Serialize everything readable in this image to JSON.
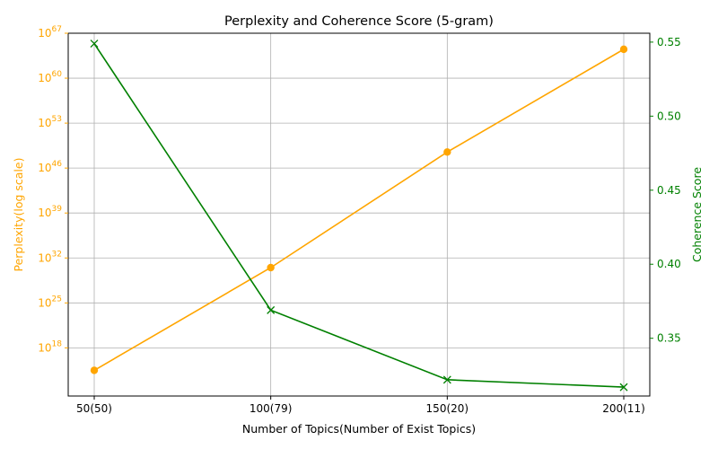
{
  "chart_data": {
    "type": "line",
    "title": "Perplexity and Coherence Score (5-gram)",
    "xlabel": "Number of Topics(Number of Exist Topics)",
    "categories": [
      "50(50)",
      "100(79)",
      "150(20)",
      "200(11)"
    ],
    "left_axis": {
      "label": "Perplexity(log scale)",
      "scale": "log",
      "color": "#FFA500",
      "exp_range": [
        10.5,
        67
      ],
      "tick_exponents": [
        18,
        25,
        32,
        39,
        46,
        53,
        60,
        67
      ]
    },
    "right_axis": {
      "label": "Coherence Score",
      "scale": "linear",
      "color": "#008000",
      "ylim": [
        0.311,
        0.556
      ],
      "ticks": [
        0.35,
        0.4,
        0.45,
        0.5,
        0.55
      ],
      "tick_labels": [
        "0.35",
        "0.40",
        "0.45",
        "0.50",
        "0.55"
      ]
    },
    "series": [
      {
        "axis": "left",
        "color": "#FFA500",
        "marker": "circle",
        "log10_values": [
          14.5,
          30.5,
          48.5,
          64.5
        ]
      },
      {
        "axis": "right",
        "color": "#008000",
        "marker": "x",
        "values": [
          0.549,
          0.369,
          0.322,
          0.317
        ]
      }
    ],
    "grid": true
  }
}
